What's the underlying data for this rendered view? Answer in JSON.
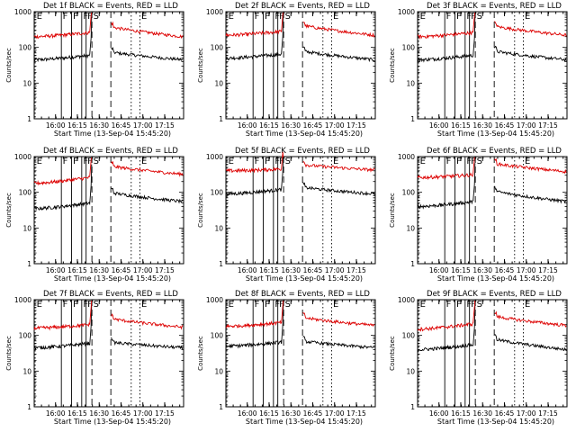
{
  "chart_data": {
    "type": "line",
    "layout": "3x3 grid",
    "shared": {
      "y_scale": "log",
      "ylim": [
        1,
        1000
      ],
      "ytick_labels": [
        "1",
        "10",
        "100",
        "1000"
      ],
      "ylabel": "Counts/sec",
      "xlabel": "Start Time (13-Sep-04 15:45:20)",
      "xlim": [
        "15:45:20",
        "17:28"
      ],
      "xtick_labels": [
        "16:00",
        "16:15",
        "16:30",
        "16:45",
        "17:00",
        "17:15"
      ],
      "xtick_minutes": [
        960,
        975,
        990,
        1005,
        1020,
        1035
      ],
      "title_suffix": " BLACK = Events, RED = LLD",
      "grid": false,
      "series_colors": {
        "events": "#000000",
        "lld": "#dd0000"
      },
      "markers": [
        {
          "label": "E",
          "time": "15:46",
          "minute": 946,
          "style": "dotted"
        },
        {
          "label": "F",
          "time": "16:04",
          "minute": 964,
          "style": "solid"
        },
        {
          "label": "F",
          "time": "16:11",
          "minute": 971,
          "style": "solid"
        },
        {
          "label": "F",
          "time": "16:18",
          "minute": 978,
          "style": "solid"
        },
        {
          "label": "F",
          "time": "16:21",
          "minute": 981,
          "style": "solid"
        },
        {
          "label": "S",
          "time": "16:25",
          "minute": 985,
          "style": "dashed"
        },
        {
          "label": "",
          "time": "16:38",
          "minute": 998,
          "style": "dashed"
        },
        {
          "label": "E",
          "time": "16:58",
          "minute": 1018,
          "style": "dotted"
        },
        {
          "label": "",
          "time": "16:52",
          "minute": 1012,
          "style": "dotted"
        }
      ]
    },
    "panels": [
      {
        "title": "Det 1f",
        "series": [
          {
            "name": "BLACK = Events",
            "pre": [
              45,
              60
            ],
            "post": [
              75,
              45
            ]
          },
          {
            "name": "RED = LLD",
            "pre": [
              200,
              260
            ],
            "post": [
              380,
              200
            ]
          }
        ]
      },
      {
        "title": "Det 2f",
        "series": [
          {
            "name": "BLACK = Events",
            "pre": [
              50,
              65
            ],
            "post": [
              80,
              45
            ]
          },
          {
            "name": "RED = LLD",
            "pre": [
              220,
              280
            ],
            "post": [
              420,
              220
            ]
          }
        ]
      },
      {
        "title": "Det 3f",
        "series": [
          {
            "name": "BLACK = Events",
            "pre": [
              45,
              60
            ],
            "post": [
              80,
              45
            ]
          },
          {
            "name": "RED = LLD",
            "pre": [
              200,
              260
            ],
            "post": [
              400,
              220
            ]
          }
        ]
      },
      {
        "title": "Det 4f",
        "series": [
          {
            "name": "BLACK = Events",
            "pre": [
              35,
              50
            ],
            "post": [
              100,
              55
            ]
          },
          {
            "name": "RED = LLD",
            "pre": [
              180,
              260
            ],
            "post": [
              550,
              320
            ]
          }
        ]
      },
      {
        "title": "Det 5f",
        "series": [
          {
            "name": "BLACK = Events",
            "pre": [
              90,
              120
            ],
            "post": [
              140,
              90
            ]
          },
          {
            "name": "RED = LLD",
            "pre": [
              400,
              450
            ],
            "post": [
              600,
              420
            ]
          }
        ]
      },
      {
        "title": "Det 6f",
        "series": [
          {
            "name": "BLACK = Events",
            "pre": [
              40,
              55
            ],
            "post": [
              110,
              55
            ]
          },
          {
            "name": "RED = LLD",
            "pre": [
              260,
              310
            ],
            "post": [
              650,
              380
            ]
          }
        ]
      },
      {
        "title": "Det 7f",
        "series": [
          {
            "name": "BLACK = Events",
            "pre": [
              45,
              60
            ],
            "post": [
              65,
              45
            ]
          },
          {
            "name": "RED = LLD",
            "pre": [
              160,
              200
            ],
            "post": [
              300,
              170
            ]
          }
        ]
      },
      {
        "title": "Det 8f",
        "series": [
          {
            "name": "BLACK = Events",
            "pre": [
              50,
              65
            ],
            "post": [
              70,
              45
            ]
          },
          {
            "name": "RED = LLD",
            "pre": [
              180,
              230
            ],
            "post": [
              320,
              190
            ]
          }
        ]
      },
      {
        "title": "Det 9f",
        "series": [
          {
            "name": "BLACK = Events",
            "pre": [
              40,
              55
            ],
            "post": [
              80,
              40
            ]
          },
          {
            "name": "RED = LLD",
            "pre": [
              150,
              210
            ],
            "post": [
              350,
              190
            ]
          }
        ]
      }
    ]
  }
}
